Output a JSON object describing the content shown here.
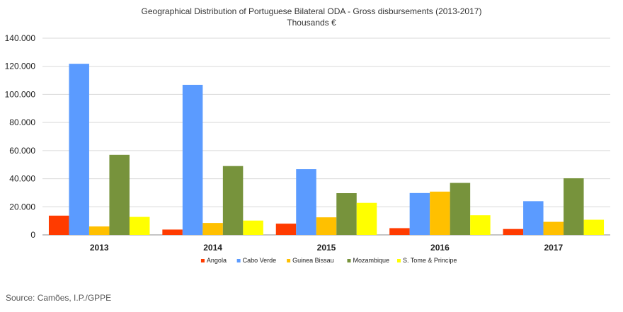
{
  "chart_data": {
    "type": "bar",
    "title": "Geographical Distribution of Portuguese Bilateral  ODA - Gross disbursements (2013-2017)",
    "subtitle": "Thousands €",
    "categories": [
      "2013",
      "2014",
      "2015",
      "2016",
      "2017"
    ],
    "series": [
      {
        "name": "Angola",
        "color": "#ff3b00",
        "values": [
          13700,
          3800,
          8000,
          4800,
          4200
        ]
      },
      {
        "name": "Cabo Verde",
        "color": "#5b9bff",
        "values": [
          121800,
          106800,
          46800,
          29800,
          24000
        ]
      },
      {
        "name": "Guinea Bissau",
        "color": "#ffc000",
        "values": [
          6000,
          8500,
          12500,
          30800,
          9300
        ]
      },
      {
        "name": "Mozambique",
        "color": "#77933c",
        "values": [
          57000,
          49000,
          29700,
          37000,
          40300
        ]
      },
      {
        "name": "S. Tome & Principe",
        "color": "#ffff00",
        "values": [
          12800,
          10200,
          22800,
          14000,
          10800
        ]
      }
    ],
    "ylim": [
      0,
      140000
    ],
    "yticks": [
      0,
      20000,
      40000,
      60000,
      80000,
      100000,
      120000,
      140000
    ],
    "ytick_labels": [
      "0",
      "20.000",
      "40.000",
      "60.000",
      "80.000",
      "100.000",
      "120.000",
      "140.000"
    ],
    "grid": true,
    "legend": "bottom"
  },
  "source": "Source: Camões, I.P./GPPE"
}
